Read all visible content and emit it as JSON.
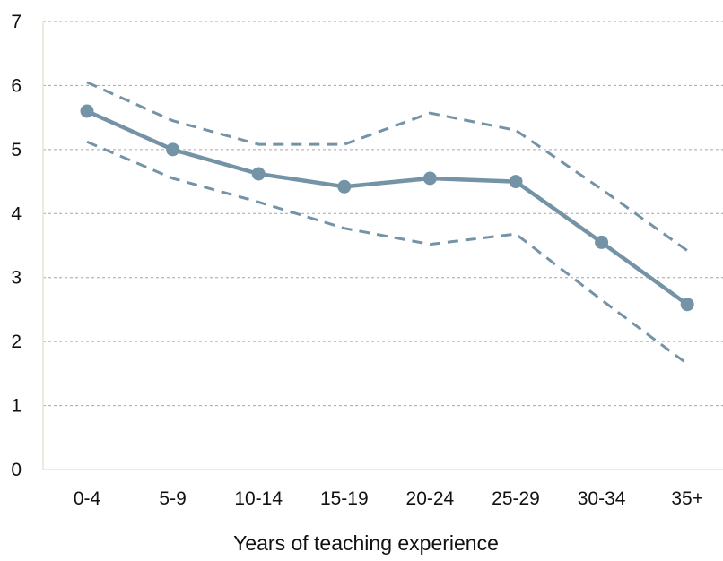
{
  "chart_data": {
    "type": "line",
    "categories": [
      "0-4",
      "5-9",
      "10-14",
      "15-19",
      "20-24",
      "25-29",
      "30-34",
      "35+"
    ],
    "series": [
      {
        "values": [
          5.6,
          5.0,
          4.62,
          4.42,
          4.55,
          4.5,
          3.55,
          2.58
        ],
        "style": "solid-with-markers"
      },
      {
        "values": [
          6.05,
          5.45,
          5.08,
          5.08,
          5.57,
          5.3,
          4.38,
          3.42
        ],
        "style": "dashed"
      },
      {
        "values": [
          5.12,
          4.55,
          4.18,
          3.77,
          3.52,
          3.68,
          2.65,
          1.65
        ],
        "style": "dashed"
      }
    ],
    "xlabel": "Years of teaching experience",
    "ylabel": "",
    "ylim": [
      0,
      7
    ],
    "yticks": [
      "0",
      "1",
      "2",
      "3",
      "4",
      "5",
      "6",
      "7"
    ],
    "grid": "horizontal-dashed",
    "colors": {
      "line": "#7593a6",
      "grid": "#a6a6a6",
      "axis": "#e3e6d3"
    }
  }
}
